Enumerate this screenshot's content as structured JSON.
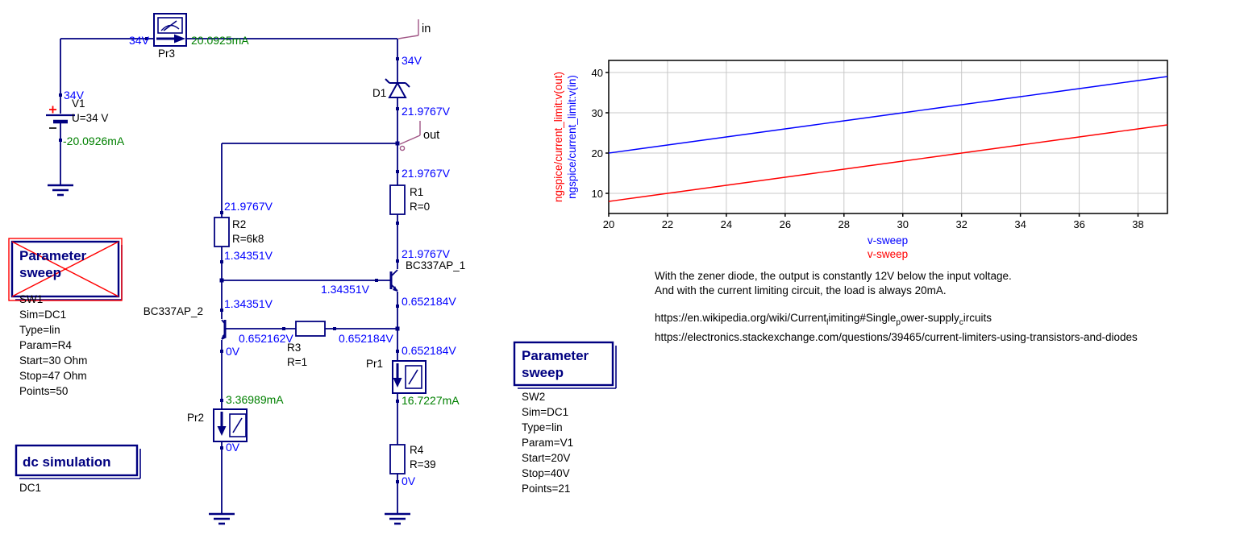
{
  "colors": {
    "wire": "#000080",
    "voltage_text": "#0000ff",
    "current_text": "#008000",
    "component_text": "#000000",
    "node_flag": "#a05585",
    "selection_red": "#ff0000",
    "grid": "#c8c8c8"
  },
  "schematic": {
    "v1": {
      "name": "V1",
      "value": "U=34 V",
      "v_top": "34V",
      "i_bottom": "-20.0926mA"
    },
    "pr3": {
      "name": "Pr3",
      "v_left": "34V",
      "i_right": "20.0925mA"
    },
    "node_in": {
      "label": "in",
      "v": "34V"
    },
    "node_out": {
      "label": "out"
    },
    "d1": {
      "name": "D1",
      "v_below": "21.9767V"
    },
    "r1": {
      "name": "R1",
      "value": "R=0",
      "v_above": "21.9767V"
    },
    "r2": {
      "name": "R2",
      "value": "R=6k8",
      "v_above": "21.9767V",
      "v_below": "1.34351V"
    },
    "r3": {
      "name": "R3",
      "value": "R=1",
      "v_left": "0.652162V",
      "v_right": "0.652184V"
    },
    "r4": {
      "name": "R4",
      "value": "R=39",
      "v_below": "0V"
    },
    "q1": {
      "name": "BC337AP_1",
      "v_collector": "21.9767V",
      "v_base": "1.34351V",
      "v_emitter": "0.652184V"
    },
    "q2": {
      "name": "BC337AP_2",
      "v_collector": "1.34351V",
      "v_emitter": "0V"
    },
    "pr1": {
      "name": "Pr1",
      "v_above": "0.652184V",
      "i_below": "16.7227mA"
    },
    "pr2": {
      "name": "Pr2",
      "i_above": "3.36989mA",
      "v_below": "0V"
    },
    "sw1": {
      "title_lines": [
        "Parameter",
        "sweep"
      ],
      "params": [
        "SW1",
        "Sim=DC1",
        "Type=lin",
        "Param=R4",
        "Start=30 Ohm",
        "Stop=47 Ohm",
        "Points=50"
      ],
      "state": "disabled-crossed-red"
    },
    "sw2": {
      "title_lines": [
        "Parameter",
        "sweep"
      ],
      "params": [
        "SW2",
        "Sim=DC1",
        "Type=lin",
        "Param=V1",
        "Start=20V",
        "Stop=40V",
        "Points=21"
      ]
    },
    "dc": {
      "title": "dc simulation",
      "params": [
        "DC1"
      ]
    }
  },
  "chart_data": {
    "type": "line",
    "xlim": [
      20,
      39
    ],
    "ylim": [
      5,
      43
    ],
    "xticks": [
      20,
      22,
      24,
      26,
      28,
      30,
      32,
      34,
      36,
      38
    ],
    "yticks": [
      10,
      20,
      30,
      40
    ],
    "grid": true,
    "legend_position": "axis-labels",
    "x": [
      20,
      21,
      22,
      23,
      24,
      25,
      26,
      27,
      28,
      29,
      30,
      31,
      32,
      33,
      34,
      35,
      36,
      37,
      38,
      39
    ],
    "series": [
      {
        "name": "ngspice/current_limit:v(out)",
        "color": "#ff0000",
        "values": [
          8,
          9,
          10,
          11,
          12,
          13,
          14,
          15,
          16,
          17,
          18,
          19,
          20,
          21,
          22,
          23,
          24,
          25,
          26,
          27
        ]
      },
      {
        "name": "ngspice/current_limit:v(in)",
        "color": "#0000ff",
        "values": [
          20,
          21,
          22,
          23,
          24,
          25,
          26,
          27,
          28,
          29,
          30,
          31,
          32,
          33,
          34,
          35,
          36,
          37,
          38,
          39
        ]
      }
    ],
    "xlabels": [
      {
        "text": "v-sweep",
        "color": "#0000ff"
      },
      {
        "text": "v-sweep",
        "color": "#ff0000"
      }
    ]
  },
  "notes": {
    "line1": "With the zener diode, the output is constantly 12V below the input voltage.",
    "line2": "And with the current limiting circuit, the load is always 20mA.",
    "url1_parts": [
      "https://en.wikipedia.org/wiki/Current",
      "l",
      "imiting#Single",
      "p",
      "ower-supply",
      "c",
      "ircuits"
    ],
    "url2": "https://electronics.stackexchange.com/questions/39465/current-limiters-using-transistors-and-diodes"
  }
}
